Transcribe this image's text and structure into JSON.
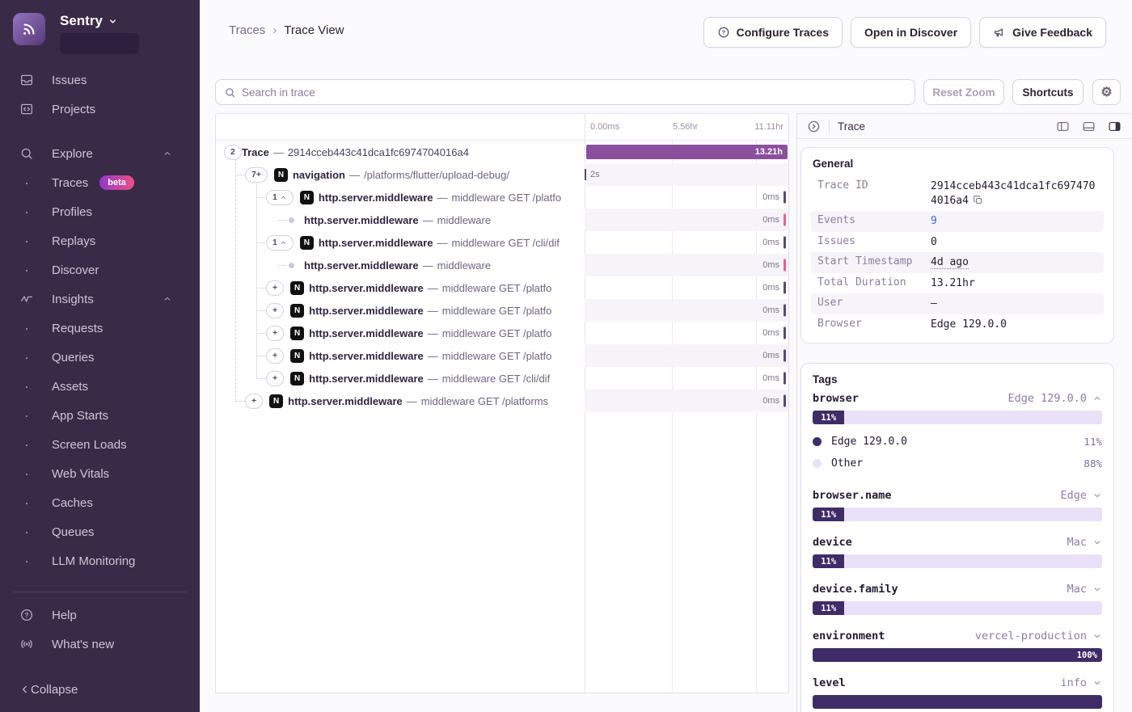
{
  "app": {
    "brand": "Sentry"
  },
  "sidebar": {
    "items": [
      {
        "label": "Issues",
        "icon": "issues-icon",
        "type": "top"
      },
      {
        "label": "Projects",
        "icon": "projects-icon",
        "type": "top"
      },
      {
        "label": "Explore",
        "icon": "search-icon",
        "type": "group",
        "chevron": "up",
        "first": true
      },
      {
        "label": "Traces",
        "type": "sub",
        "badge": "beta"
      },
      {
        "label": "Profiles",
        "type": "sub"
      },
      {
        "label": "Replays",
        "type": "sub"
      },
      {
        "label": "Discover",
        "type": "sub"
      },
      {
        "label": "Insights",
        "icon": "insights-icon",
        "type": "group",
        "chevron": "up"
      },
      {
        "label": "Requests",
        "type": "sub"
      },
      {
        "label": "Queries",
        "type": "sub"
      },
      {
        "label": "Assets",
        "type": "sub"
      },
      {
        "label": "App Starts",
        "type": "sub"
      },
      {
        "label": "Screen Loads",
        "type": "sub"
      },
      {
        "label": "Web Vitals",
        "type": "sub"
      },
      {
        "label": "Caches",
        "type": "sub"
      },
      {
        "label": "Queues",
        "type": "sub"
      },
      {
        "label": "LLM Monitoring",
        "type": "sub"
      }
    ],
    "footer_items": [
      {
        "label": "Help",
        "icon": "help-icon"
      },
      {
        "label": "What's new",
        "icon": "broadcast-icon"
      }
    ],
    "collapse_label": "Collapse"
  },
  "breadcrumb": {
    "parent": "Traces",
    "separator": "›",
    "current": "Trace View"
  },
  "header_buttons": {
    "configure": "Configure Traces",
    "discover": "Open in Discover",
    "feedback": "Give Feedback"
  },
  "toolbar": {
    "search_placeholder": "Search in trace",
    "reset_zoom": "Reset Zoom",
    "shortcuts": "Shortcuts"
  },
  "icons": {
    "gear": "⚙"
  },
  "waterfall": {
    "axis": [
      "0.00ms",
      "5.56hr",
      "11.11hr"
    ],
    "sep": "—",
    "rows": [
      {
        "depth": 0,
        "pill": "2",
        "op": "Trace",
        "desc": "2914cceb443c41dca1fc6974704016a4",
        "dur": "13.21h",
        "kind": "bar"
      },
      {
        "depth": 1,
        "pill": "7+",
        "nicon": true,
        "op": "navigation",
        "desc": "/platforms/flutter/upload-debug/",
        "dur": "2s",
        "kind": "start"
      },
      {
        "depth": 2,
        "pill": "1",
        "pill_chevron": "up",
        "nicon": true,
        "op": "http.server.middleware",
        "desc": "middleware GET /platfo",
        "dur": "0ms",
        "kind": "tick",
        "tick": "dark"
      },
      {
        "depth": 3,
        "dot": true,
        "op": "http.server.middleware",
        "desc": "middleware",
        "dur": "0ms",
        "kind": "tick",
        "tick": "pink"
      },
      {
        "depth": 2,
        "pill": "1",
        "pill_chevron": "up",
        "nicon": true,
        "op": "http.server.middleware",
        "desc": "middleware GET /cli/dif",
        "dur": "0ms",
        "kind": "tick",
        "tick": "dark"
      },
      {
        "depth": 3,
        "dot": true,
        "op": "http.server.middleware",
        "desc": "middleware",
        "dur": "0ms",
        "kind": "tick",
        "tick": "pink"
      },
      {
        "depth": 2,
        "pill": "+",
        "nicon": true,
        "op": "http.server.middleware",
        "desc": "middleware GET /platfo",
        "dur": "0ms",
        "kind": "tick",
        "tick": "dark"
      },
      {
        "depth": 2,
        "pill": "+",
        "nicon": true,
        "op": "http.server.middleware",
        "desc": "middleware GET /platfo",
        "dur": "0ms",
        "kind": "tick",
        "tick": "dark"
      },
      {
        "depth": 2,
        "pill": "+",
        "nicon": true,
        "op": "http.server.middleware",
        "desc": "middleware GET /platfo",
        "dur": "0ms",
        "kind": "tick",
        "tick": "dark"
      },
      {
        "depth": 2,
        "pill": "+",
        "nicon": true,
        "op": "http.server.middleware",
        "desc": "middleware GET /platfo",
        "dur": "0ms",
        "kind": "tick",
        "tick": "dark"
      },
      {
        "depth": 2,
        "pill": "+",
        "nicon": true,
        "op": "http.server.middleware",
        "desc": "middleware GET /cli/dif",
        "dur": "0ms",
        "kind": "tick",
        "tick": "dark"
      },
      {
        "depth": 1,
        "pill": "+",
        "nicon": true,
        "op": "http.server.middleware",
        "desc": "middleware GET /platforms",
        "dur": "0ms",
        "kind": "tick",
        "tick": "dark"
      }
    ]
  },
  "drawer": {
    "title": "Trace",
    "general": {
      "heading": "General",
      "rows": [
        {
          "label": "Trace ID",
          "value": "2914cceb443c41dca1fc6974704016a4",
          "copy": true
        },
        {
          "label": "Events",
          "value": "9",
          "link": true
        },
        {
          "label": "Issues",
          "value": "0"
        },
        {
          "label": "Start Timestamp",
          "value": "4d ago",
          "dotted": true
        },
        {
          "label": "Total Duration",
          "value": "13.21hr"
        },
        {
          "label": "User",
          "value": "—"
        },
        {
          "label": "Browser",
          "value": "Edge 129.0.0"
        }
      ]
    },
    "tags": {
      "heading": "Tags",
      "items": [
        {
          "name": "browser",
          "value": "Edge 129.0.0",
          "expanded": true,
          "percent": 11,
          "bar_label": "11%",
          "legend": [
            {
              "label": "Edge 129.0.0",
              "pct": "11%",
              "color": "dark"
            },
            {
              "label": "Other",
              "pct": "88%",
              "color": "light"
            }
          ]
        },
        {
          "name": "browser.name",
          "value": "Edge",
          "percent": 11,
          "bar_label": "11%"
        },
        {
          "name": "device",
          "value": "Mac",
          "percent": 11,
          "bar_label": "11%"
        },
        {
          "name": "device.family",
          "value": "Mac",
          "percent": 11,
          "bar_label": "11%"
        },
        {
          "name": "environment",
          "value": "vercel-production",
          "percent": 100,
          "bar_label": "100%"
        },
        {
          "name": "level",
          "value": "info",
          "percent": 100,
          "bar_label": ""
        }
      ]
    }
  },
  "colors": {
    "accent_purple": "#8a4f9d",
    "sidebar_bg": "#392b47",
    "tag_fill": "#3f2c66",
    "tag_track": "#e9e1f8",
    "tick_dark": "#564c72",
    "tick_pink": "#e0608f",
    "link_blue": "#3f68c4"
  }
}
